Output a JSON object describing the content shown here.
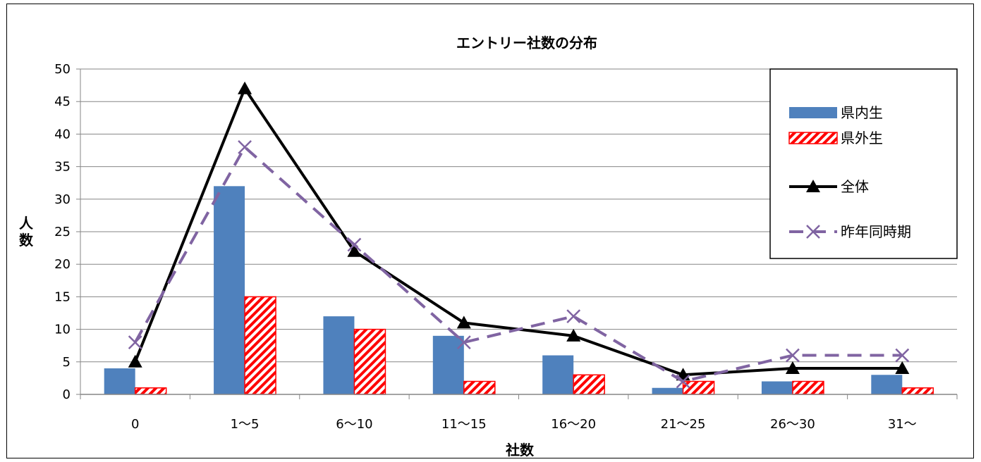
{
  "chart_data": {
    "type": "bar",
    "title": "エントリー社数の分布",
    "xlabel": "社数",
    "ylabel": "人数",
    "categories": [
      "0",
      "1〜5",
      "6〜10",
      "11〜15",
      "16〜20",
      "21〜25",
      "26〜30",
      "31〜"
    ],
    "ylim": [
      0,
      50
    ],
    "yticks": [
      0,
      5,
      10,
      15,
      20,
      25,
      30,
      35,
      40,
      45,
      50
    ],
    "grid": true,
    "legend_position": "top-right",
    "series": [
      {
        "name": "県内生",
        "kind": "bar",
        "color": "#4f81bd",
        "values": [
          4,
          32,
          12,
          9,
          6,
          1,
          2,
          3
        ]
      },
      {
        "name": "県外生",
        "kind": "bar-hatched",
        "color": "#ff0000",
        "values": [
          1,
          15,
          10,
          2,
          3,
          2,
          2,
          1
        ]
      },
      {
        "name": "全体",
        "kind": "line-triangle",
        "color": "#000000",
        "values": [
          5,
          47,
          22,
          11,
          9,
          3,
          4,
          4
        ]
      },
      {
        "name": "昨年同時期",
        "kind": "line-dashed-x",
        "color": "#8064a2",
        "values": [
          8,
          38,
          23,
          8,
          12,
          2,
          6,
          6
        ]
      }
    ]
  }
}
